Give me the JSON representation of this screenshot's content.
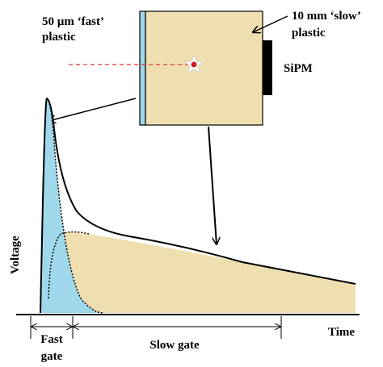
{
  "labels": {
    "fast_plastic": [
      "50 µm ‘fast’",
      "plastic"
    ],
    "slow_plastic": [
      "10 mm ‘slow’",
      "plastic"
    ],
    "sipm": "SiPM",
    "y_axis": "Voltage",
    "x_axis": "Time",
    "fast_gate": [
      "Fast",
      "gate"
    ],
    "slow_gate": "Slow gate"
  }
}
